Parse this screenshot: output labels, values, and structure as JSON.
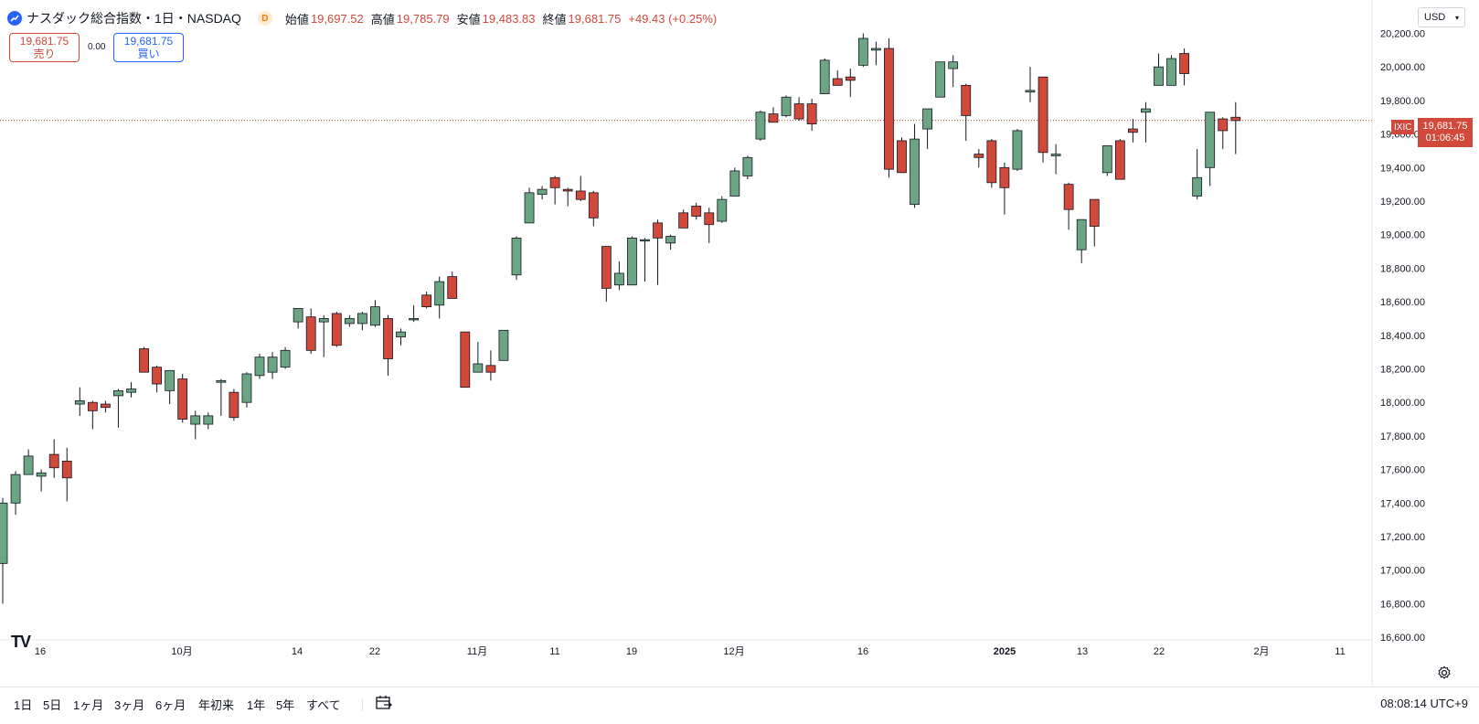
{
  "header": {
    "symbol_title": "ナスダック総合指数・1日・NASDAQ",
    "delay_badge": "D",
    "ohlc": [
      {
        "k": "始値",
        "v": "19,697.52"
      },
      {
        "k": "高値",
        "v": "19,785.79"
      },
      {
        "k": "安値",
        "v": "19,483.83"
      },
      {
        "k": "終値",
        "v": "19,681.75"
      },
      {
        "k": "",
        "v": "+49.43 (+0.25%)"
      }
    ]
  },
  "trade": {
    "sell_price": "19,681.75",
    "sell_label": "売り",
    "spread": "0.00",
    "buy_price": "19,681.75",
    "buy_label": "買い"
  },
  "currency": "USD",
  "logo_text": "TV",
  "last_price": {
    "symbol": "IXIC",
    "price": "19,681.75",
    "countdown": "01:06:45"
  },
  "colors": {
    "up": "#6ba583",
    "down": "#d1493a",
    "grid": "#f0f3fa",
    "text": "#131722"
  },
  "time_axis": [
    "16",
    "10月",
    "14",
    "22",
    "11月",
    "11",
    "19",
    "12月",
    "16",
    "2025",
    "13",
    "22",
    "2月",
    "11"
  ],
  "ranges": [
    "1日",
    "5日",
    "1ヶ月",
    "3ヶ月",
    "6ヶ月",
    "年初来",
    "1年",
    "5年",
    "すべて"
  ],
  "clock": "08:08:14 UTC+9",
  "chart_data": {
    "type": "candlestick",
    "y_ticks": [
      20200,
      20000,
      19800,
      19600,
      19400,
      19200,
      19000,
      18800,
      18600,
      18400,
      18200,
      18000,
      17800,
      17600,
      17400,
      17200,
      17000,
      16800,
      16600
    ],
    "y_tick_labels": [
      "20,200.00",
      "20,000.00",
      "19,800.00",
      "19,600.00",
      "19,400.00",
      "19,200.00",
      "19,000.00",
      "18,800.00",
      "18,600.00",
      "18,400.00",
      "18,200.00",
      "18,000.00",
      "17,800.00",
      "17,600.00",
      "17,400.00",
      "17,200.00",
      "17,000.00",
      "16,800.00",
      "16,600.00"
    ],
    "ylim": [
      16600,
      20220
    ],
    "last_price": 19681.75,
    "candles": [
      {
        "o": 17040,
        "h": 17430,
        "c": 17400,
        "l": 16800
      },
      {
        "o": 17400,
        "h": 17590,
        "c": 17570,
        "l": 17330
      },
      {
        "o": 17570,
        "h": 17720,
        "c": 17680,
        "l": 17570
      },
      {
        "o": 17560,
        "h": 17600,
        "c": 17580,
        "l": 17470
      },
      {
        "o": 17690,
        "h": 17780,
        "c": 17610,
        "l": 17550
      },
      {
        "o": 17650,
        "h": 17730,
        "c": 17550,
        "l": 17410
      },
      {
        "o": 17990,
        "h": 18090,
        "c": 18010,
        "l": 17920
      },
      {
        "o": 18000,
        "h": 18010,
        "c": 17950,
        "l": 17840
      },
      {
        "o": 17990,
        "h": 18010,
        "c": 17970,
        "l": 17940
      },
      {
        "o": 18040,
        "h": 18080,
        "c": 18070,
        "l": 17850
      },
      {
        "o": 18060,
        "h": 18120,
        "c": 18080,
        "l": 18030
      },
      {
        "o": 18320,
        "h": 18330,
        "c": 18180,
        "l": 18180
      },
      {
        "o": 18210,
        "h": 18220,
        "c": 18110,
        "l": 18060
      },
      {
        "o": 18070,
        "h": 18190,
        "c": 18190,
        "l": 17990
      },
      {
        "o": 18140,
        "h": 18170,
        "c": 17900,
        "l": 17880
      },
      {
        "o": 17870,
        "h": 17950,
        "c": 17920,
        "l": 17780
      },
      {
        "o": 17870,
        "h": 17940,
        "c": 17920,
        "l": 17840
      },
      {
        "o": 18120,
        "h": 18140,
        "c": 18130,
        "l": 17920
      },
      {
        "o": 18060,
        "h": 18080,
        "c": 17910,
        "l": 17890
      },
      {
        "o": 18000,
        "h": 18180,
        "c": 18170,
        "l": 17970
      },
      {
        "o": 18160,
        "h": 18290,
        "c": 18270,
        "l": 18140
      },
      {
        "o": 18180,
        "h": 18300,
        "c": 18270,
        "l": 18140
      },
      {
        "o": 18210,
        "h": 18330,
        "c": 18310,
        "l": 18200
      },
      {
        "o": 18480,
        "h": 18560,
        "c": 18560,
        "l": 18440
      },
      {
        "o": 18510,
        "h": 18560,
        "c": 18310,
        "l": 18290
      },
      {
        "o": 18480,
        "h": 18520,
        "c": 18500,
        "l": 18270
      },
      {
        "o": 18530,
        "h": 18540,
        "c": 18340,
        "l": 18330
      },
      {
        "o": 18470,
        "h": 18520,
        "c": 18500,
        "l": 18450
      },
      {
        "o": 18470,
        "h": 18540,
        "c": 18530,
        "l": 18430
      },
      {
        "o": 18460,
        "h": 18610,
        "c": 18570,
        "l": 18450
      },
      {
        "o": 18500,
        "h": 18520,
        "c": 18260,
        "l": 18160
      },
      {
        "o": 18390,
        "h": 18440,
        "c": 18420,
        "l": 18340
      },
      {
        "o": 18500,
        "h": 18580,
        "c": 18500,
        "l": 18480
      },
      {
        "o": 18640,
        "h": 18660,
        "c": 18570,
        "l": 18560
      },
      {
        "o": 18580,
        "h": 18750,
        "c": 18720,
        "l": 18500
      },
      {
        "o": 18750,
        "h": 18780,
        "c": 18620,
        "l": 18620
      },
      {
        "o": 18420,
        "h": 18420,
        "c": 18090,
        "l": 18090
      },
      {
        "o": 18180,
        "h": 18360,
        "c": 18230,
        "l": 18180
      },
      {
        "o": 18220,
        "h": 18310,
        "c": 18180,
        "l": 18130
      },
      {
        "o": 18250,
        "h": 18430,
        "c": 18430,
        "l": 18250
      },
      {
        "o": 18760,
        "h": 18990,
        "c": 18980,
        "l": 18730
      },
      {
        "o": 19070,
        "h": 19280,
        "c": 19250,
        "l": 19070
      },
      {
        "o": 19240,
        "h": 19290,
        "c": 19270,
        "l": 19210
      },
      {
        "o": 19340,
        "h": 19350,
        "c": 19280,
        "l": 19180
      },
      {
        "o": 19270,
        "h": 19280,
        "c": 19260,
        "l": 19170
      },
      {
        "o": 19260,
        "h": 19350,
        "c": 19210,
        "l": 19200
      },
      {
        "o": 19250,
        "h": 19260,
        "c": 19100,
        "l": 19050
      },
      {
        "o": 18930,
        "h": 18930,
        "c": 18680,
        "l": 18600
      },
      {
        "o": 18700,
        "h": 18840,
        "c": 18770,
        "l": 18670
      },
      {
        "o": 18700,
        "h": 18990,
        "c": 18980,
        "l": 18700
      },
      {
        "o": 18970,
        "h": 18980,
        "c": 18970,
        "l": 18720
      },
      {
        "o": 19070,
        "h": 19090,
        "c": 18980,
        "l": 18700
      },
      {
        "o": 18950,
        "h": 19000,
        "c": 18990,
        "l": 18910
      },
      {
        "o": 19130,
        "h": 19150,
        "c": 19040,
        "l": 19040
      },
      {
        "o": 19170,
        "h": 19190,
        "c": 19110,
        "l": 19090
      },
      {
        "o": 19130,
        "h": 19160,
        "c": 19060,
        "l": 18950
      },
      {
        "o": 19080,
        "h": 19230,
        "c": 19210,
        "l": 19070
      },
      {
        "o": 19230,
        "h": 19400,
        "c": 19380,
        "l": 19230
      },
      {
        "o": 19350,
        "h": 19470,
        "c": 19460,
        "l": 19330
      },
      {
        "o": 19570,
        "h": 19740,
        "c": 19730,
        "l": 19560
      },
      {
        "o": 19720,
        "h": 19760,
        "c": 19670,
        "l": 19670
      },
      {
        "o": 19710,
        "h": 19830,
        "c": 19820,
        "l": 19700
      },
      {
        "o": 19780,
        "h": 19820,
        "c": 19690,
        "l": 19680
      },
      {
        "o": 19780,
        "h": 19810,
        "c": 19660,
        "l": 19620
      },
      {
        "o": 19840,
        "h": 20050,
        "c": 20040,
        "l": 19840
      },
      {
        "o": 19930,
        "h": 19980,
        "c": 19890,
        "l": 19890
      },
      {
        "o": 19940,
        "h": 19990,
        "c": 19920,
        "l": 19820
      },
      {
        "o": 20010,
        "h": 20200,
        "c": 20170,
        "l": 20000
      },
      {
        "o": 20100,
        "h": 20150,
        "c": 20110,
        "l": 20010
      },
      {
        "o": 20110,
        "h": 20170,
        "c": 19390,
        "l": 19340
      },
      {
        "o": 19560,
        "h": 19580,
        "c": 19370,
        "l": 19370
      },
      {
        "o": 19180,
        "h": 19660,
        "c": 19570,
        "l": 19160
      },
      {
        "o": 19630,
        "h": 19750,
        "c": 19750,
        "l": 19510
      },
      {
        "o": 19820,
        "h": 20020,
        "c": 20030,
        "l": 19820
      },
      {
        "o": 19990,
        "h": 20070,
        "c": 20030,
        "l": 19880
      },
      {
        "o": 19890,
        "h": 19900,
        "c": 19710,
        "l": 19560
      },
      {
        "o": 19480,
        "h": 19510,
        "c": 19460,
        "l": 19400
      },
      {
        "o": 19560,
        "h": 19570,
        "c": 19310,
        "l": 19280
      },
      {
        "o": 19400,
        "h": 19430,
        "c": 19280,
        "l": 19120
      },
      {
        "o": 19390,
        "h": 19630,
        "c": 19620,
        "l": 19380
      },
      {
        "o": 19850,
        "h": 20000,
        "c": 19860,
        "l": 19790
      },
      {
        "o": 19940,
        "h": 19940,
        "c": 19490,
        "l": 19430
      },
      {
        "o": 19470,
        "h": 19540,
        "c": 19480,
        "l": 19360
      },
      {
        "o": 19300,
        "h": 19310,
        "c": 19150,
        "l": 19030
      },
      {
        "o": 18910,
        "h": 19090,
        "c": 19090,
        "l": 18830
      },
      {
        "o": 19210,
        "h": 19210,
        "c": 19050,
        "l": 18930
      },
      {
        "o": 19370,
        "h": 19520,
        "c": 19530,
        "l": 19350
      },
      {
        "o": 19560,
        "h": 19570,
        "c": 19330,
        "l": 19330
      },
      {
        "o": 19630,
        "h": 19690,
        "c": 19610,
        "l": 19550
      },
      {
        "o": 19730,
        "h": 19790,
        "c": 19750,
        "l": 19550
      },
      {
        "o": 19890,
        "h": 20080,
        "c": 20000,
        "l": 19890
      },
      {
        "o": 19890,
        "h": 20070,
        "c": 20050,
        "l": 19890
      },
      {
        "o": 20080,
        "h": 20110,
        "c": 19960,
        "l": 19890
      },
      {
        "o": 19230,
        "h": 19510,
        "c": 19340,
        "l": 19210
      },
      {
        "o": 19400,
        "h": 19730,
        "c": 19730,
        "l": 19290
      },
      {
        "o": 19690,
        "h": 19700,
        "c": 19620,
        "l": 19510
      },
      {
        "o": 19700,
        "h": 19790,
        "c": 19680,
        "l": 19480
      }
    ]
  }
}
